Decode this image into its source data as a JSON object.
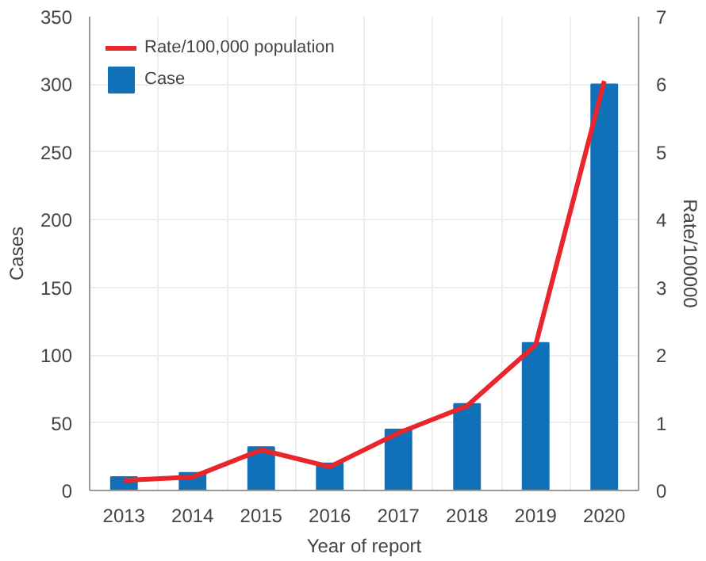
{
  "chart_data": {
    "type": "bar",
    "xlabel": "Year of report",
    "ylabel": "Cases",
    "y2label": "Rate/100000",
    "categories": [
      "2013",
      "2014",
      "2015",
      "2016",
      "2017",
      "2018",
      "2019",
      "2020"
    ],
    "series": [
      {
        "name": "Rate/100,000 population",
        "type": "line",
        "axis": "y2",
        "color": "#e8262b",
        "values": [
          0.15,
          0.2,
          0.6,
          0.35,
          0.85,
          1.25,
          2.15,
          6.05
        ]
      },
      {
        "name": "Case",
        "color": "#1070b8",
        "values": [
          10,
          13,
          32,
          20,
          45,
          64,
          109,
          300
        ]
      }
    ],
    "ylim": [
      0,
      350
    ],
    "yticks": [
      0,
      50,
      100,
      150,
      200,
      250,
      300,
      350
    ],
    "y2lim": [
      0,
      7
    ],
    "y2ticks": [
      0,
      1,
      2,
      3,
      4,
      5,
      6,
      7
    ],
    "grid": true,
    "legend": "top left",
    "marker": "none",
    "line_style": "solid"
  }
}
